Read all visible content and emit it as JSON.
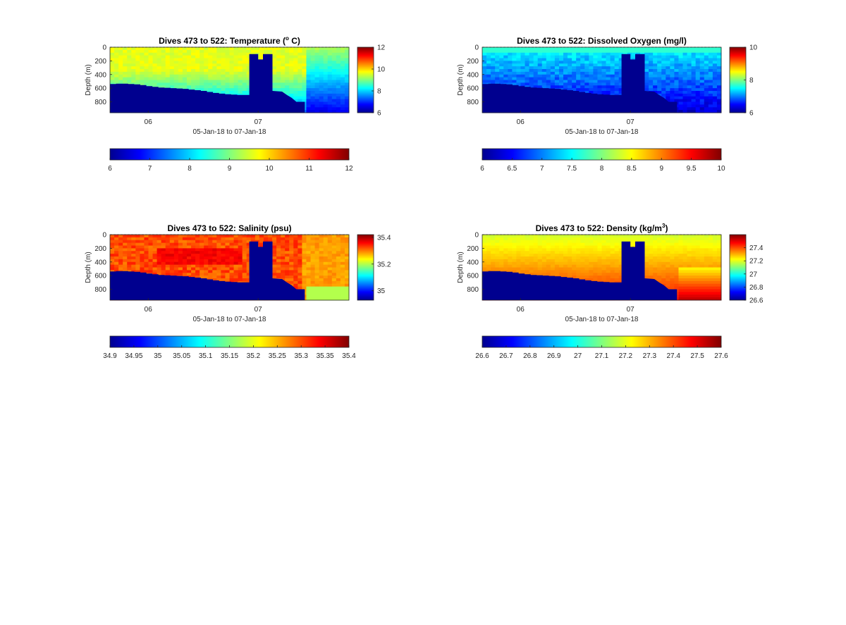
{
  "chart_data": [
    {
      "type": "heatmap",
      "title_prefix": "Dives 473 to 522: Temperature (",
      "title_sup": "o",
      "title_suffix": " C)",
      "xlabel": "05-Jan-18 to 07-Jan-18",
      "ylabel": "Depth (m)",
      "x_ticks": [
        "06",
        "07"
      ],
      "y_ticks": [
        0,
        200,
        400,
        600,
        800
      ],
      "ylim": [
        0,
        960
      ],
      "y_reversed": true,
      "colormap": "jet",
      "clim_top": [
        6,
        12
      ],
      "clim_bottom": [
        6,
        12
      ],
      "cb_right_ticks": [
        "6",
        "8",
        "10",
        "12"
      ],
      "cb_bottom_ticks": [
        "6",
        "7",
        "8",
        "9",
        "10",
        "11",
        "12"
      ]
    },
    {
      "type": "heatmap",
      "title_prefix": "Dives 473 to 522: Dissolved Oxygen (mg/l)",
      "title_sup": "",
      "title_suffix": "",
      "xlabel": "05-Jan-18 to 07-Jan-18",
      "ylabel": "Depth (m)",
      "x_ticks": [
        "06",
        "07"
      ],
      "y_ticks": [
        0,
        200,
        400,
        600,
        800
      ],
      "ylim": [
        0,
        960
      ],
      "y_reversed": true,
      "colormap": "jet",
      "clim_top": [
        6,
        10
      ],
      "clim_bottom": [
        6,
        10
      ],
      "cb_right_ticks": [
        "6",
        "8",
        "10"
      ],
      "cb_bottom_ticks": [
        "6",
        "6.5",
        "7",
        "7.5",
        "8",
        "8.5",
        "9",
        "9.5",
        "10"
      ]
    },
    {
      "type": "heatmap",
      "title_prefix": "Dives 473 to 522: Salinity (psu)",
      "title_sup": "",
      "title_suffix": "",
      "xlabel": "05-Jan-18 to 07-Jan-18",
      "ylabel": "Depth (m)",
      "x_ticks": [
        "06",
        "07"
      ],
      "y_ticks": [
        0,
        200,
        400,
        600,
        800
      ],
      "ylim": [
        0,
        960
      ],
      "y_reversed": true,
      "colormap": "jet",
      "clim_top": [
        34.93,
        35.42
      ],
      "clim_bottom": [
        34.9,
        35.4
      ],
      "cb_right_ticks": [
        "35",
        "35.2",
        "35.4"
      ],
      "cb_bottom_ticks": [
        "34.9",
        "34.95",
        "35",
        "35.05",
        "35.1",
        "35.15",
        "35.2",
        "35.25",
        "35.3",
        "35.35",
        "35.4"
      ]
    },
    {
      "type": "heatmap",
      "title_prefix": "Dives 473 to 522: Density (kg/m",
      "title_sup": "3",
      "title_suffix": ")",
      "xlabel": "05-Jan-18 to 07-Jan-18",
      "ylabel": "Depth (m)",
      "x_ticks": [
        "06",
        "07"
      ],
      "y_ticks": [
        0,
        200,
        400,
        600,
        800
      ],
      "ylim": [
        0,
        960
      ],
      "y_reversed": true,
      "colormap": "jet",
      "clim_top": [
        26.6,
        27.6
      ],
      "clim_bottom": [
        26.6,
        27.6
      ],
      "cb_right_ticks": [
        "26.6",
        "26.8",
        "27",
        "27.2",
        "27.4"
      ],
      "cb_bottom_ticks": [
        "26.6",
        "26.7",
        "26.8",
        "26.9",
        "27",
        "27.1",
        "27.2",
        "27.3",
        "27.4",
        "27.5",
        "27.6"
      ]
    }
  ]
}
